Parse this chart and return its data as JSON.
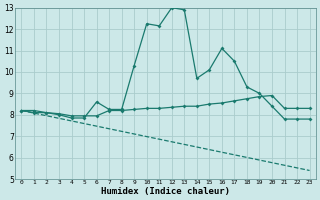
{
  "title": "",
  "xlabel": "Humidex (Indice chaleur)",
  "ylabel": "",
  "xlim": [
    -0.5,
    23.5
  ],
  "ylim": [
    5,
    13
  ],
  "yticks": [
    5,
    6,
    7,
    8,
    9,
    10,
    11,
    12,
    13
  ],
  "xticks": [
    0,
    1,
    2,
    3,
    4,
    5,
    6,
    7,
    8,
    9,
    10,
    11,
    12,
    13,
    14,
    15,
    16,
    17,
    18,
    19,
    20,
    21,
    22,
    23
  ],
  "bg_color": "#cce8e8",
  "grid_color": "#aacccc",
  "line_color": "#1a7a6e",
  "line1_x": [
    0,
    1,
    2,
    3,
    4,
    5,
    6,
    7,
    8,
    9,
    10,
    11,
    12,
    13,
    14,
    15,
    16,
    17,
    18,
    19,
    20,
    21,
    22,
    23
  ],
  "line1_y": [
    8.2,
    8.1,
    8.1,
    8.0,
    7.85,
    7.85,
    8.6,
    8.25,
    8.25,
    10.3,
    12.25,
    12.15,
    13.0,
    12.9,
    9.7,
    10.1,
    11.1,
    10.5,
    9.3,
    9.0,
    8.4,
    7.8,
    7.8,
    7.8
  ],
  "line2_x": [
    0,
    1,
    2,
    3,
    4,
    5,
    6,
    7,
    8,
    9,
    10,
    11,
    12,
    13,
    14,
    15,
    16,
    17,
    18,
    19,
    20,
    21,
    22,
    23
  ],
  "line2_y": [
    8.2,
    8.2,
    8.1,
    8.05,
    7.95,
    7.95,
    7.95,
    8.2,
    8.2,
    8.25,
    8.3,
    8.3,
    8.35,
    8.4,
    8.4,
    8.5,
    8.55,
    8.65,
    8.75,
    8.85,
    8.9,
    8.3,
    8.3,
    8.3
  ],
  "line3_x": [
    0,
    23
  ],
  "line3_y": [
    8.2,
    5.4
  ]
}
